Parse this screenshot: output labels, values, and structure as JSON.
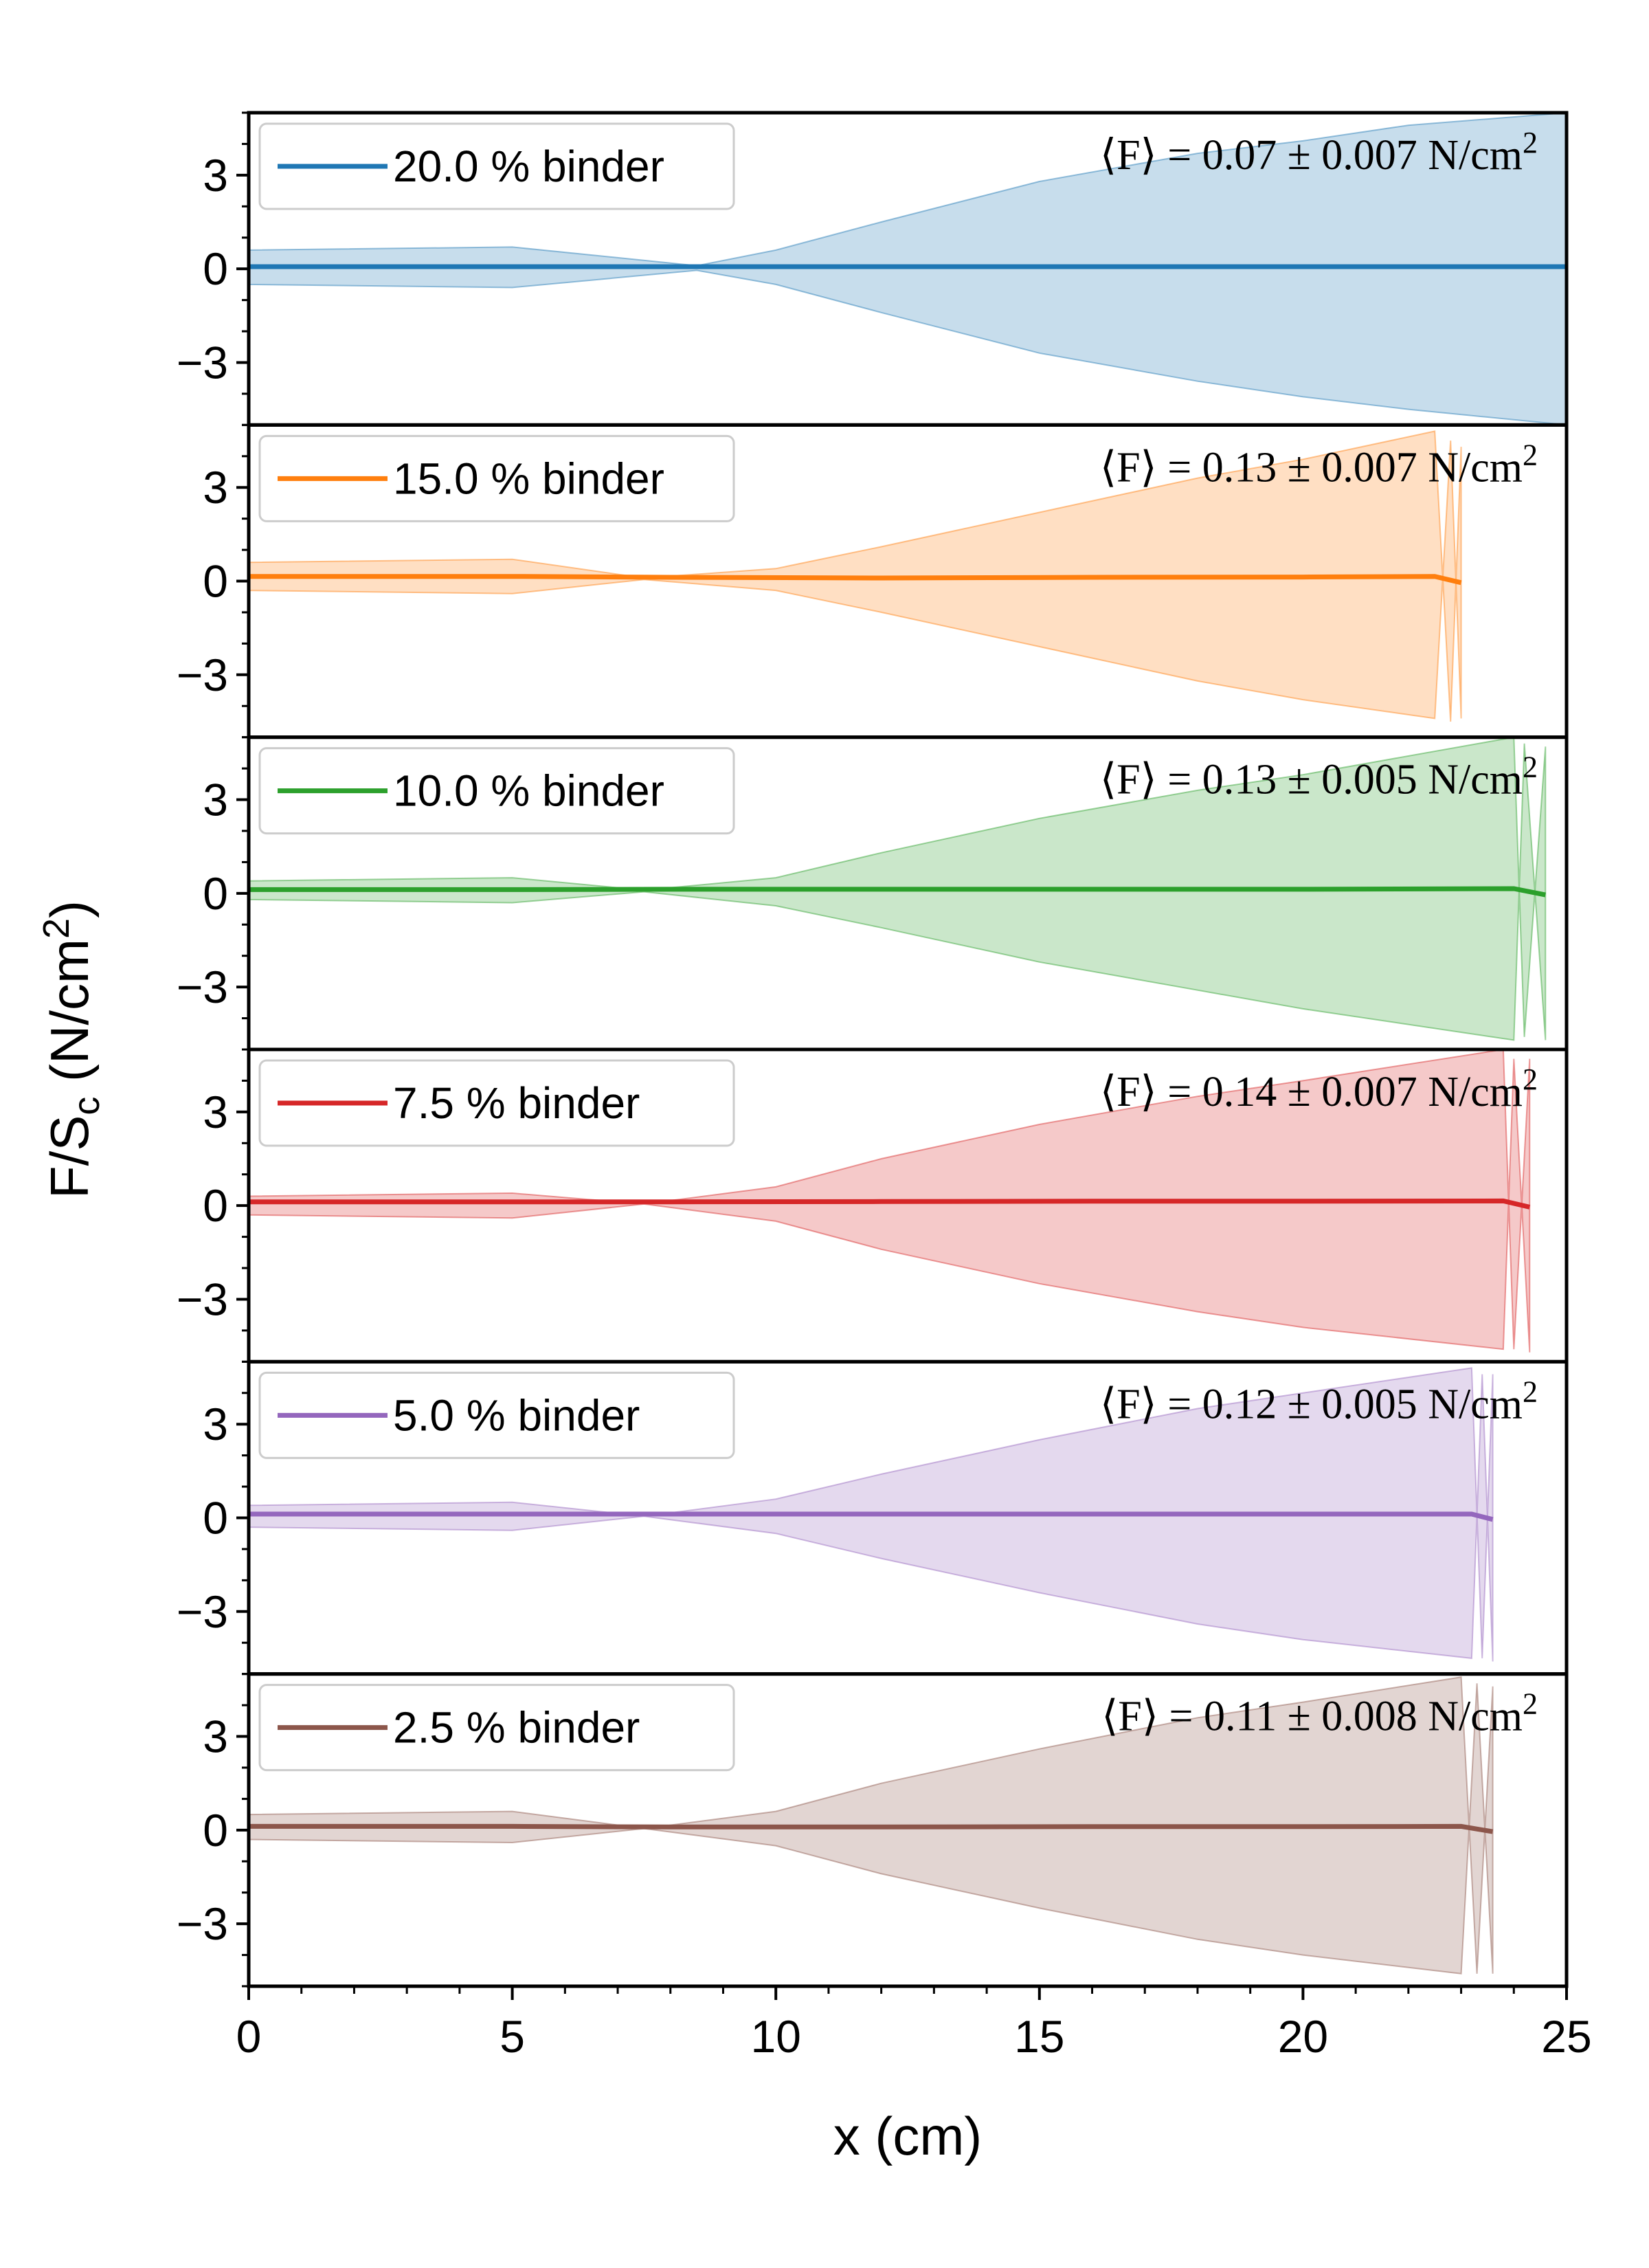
{
  "chart_data": {
    "type": "line",
    "layout": "6 vertically stacked panels with shared x axis",
    "xlabel": "x (cm)",
    "ylabel_main": "F/S",
    "ylabel_sub": "c",
    "ylabel_unit_open": " (N/cm",
    "ylabel_unit_sup": "2",
    "ylabel_unit_close": ")",
    "xlim": [
      0,
      25
    ],
    "ylim": [
      -5,
      5
    ],
    "x_ticks": [
      "0",
      "5",
      "10",
      "15",
      "20",
      "25"
    ],
    "y_ticks": [
      "3",
      "0",
      "−3"
    ],
    "grid": false,
    "legend_placement": "top-left",
    "annotation_placement": "top-right",
    "series": [
      {
        "name": "20.0 % binder",
        "color": "#1f77b4",
        "annotation": {
          "prefix": "⟨F⟩ = 0.07 ± 0.007 N/cm",
          "sup": "2"
        },
        "mean_x": [
          0,
          5,
          8,
          12,
          16,
          20,
          25
        ],
        "mean_y": [
          0.07,
          0.07,
          0.07,
          0.07,
          0.07,
          0.07,
          0.07
        ],
        "band_x": [
          0,
          5,
          8.5,
          10,
          12,
          15,
          18,
          20,
          22,
          25
        ],
        "band_upper": [
          0.6,
          0.7,
          0.1,
          0.6,
          1.5,
          2.8,
          3.7,
          4.1,
          4.6,
          5.0
        ],
        "band_lower": [
          -0.5,
          -0.6,
          -0.05,
          -0.5,
          -1.4,
          -2.7,
          -3.6,
          -4.1,
          -4.5,
          -5.0
        ]
      },
      {
        "name": "15.0 % binder",
        "color": "#ff7f0e",
        "annotation": {
          "prefix": "⟨F⟩ = 0.13 ± 0.007 N/cm",
          "sup": "2"
        },
        "mean_x": [
          0,
          5,
          8,
          12,
          16,
          20,
          22.5,
          23.0
        ],
        "mean_y": [
          0.15,
          0.15,
          0.12,
          0.1,
          0.12,
          0.13,
          0.15,
          -0.05
        ],
        "band_x": [
          0,
          5,
          7.5,
          10,
          12,
          15,
          18,
          20,
          22.5,
          22.8,
          23.0
        ],
        "band_upper": [
          0.6,
          0.7,
          0.1,
          0.4,
          1.1,
          2.2,
          3.3,
          3.9,
          4.8,
          -4.5,
          4.3
        ],
        "band_lower": [
          -0.3,
          -0.4,
          0.05,
          -0.3,
          -1.0,
          -2.1,
          -3.2,
          -3.8,
          -4.4,
          4.5,
          -4.4
        ]
      },
      {
        "name": "10.0 % binder",
        "color": "#2ca02c",
        "annotation": {
          "prefix": "⟨F⟩ = 0.13 ± 0.005 N/cm",
          "sup": "2"
        },
        "mean_x": [
          0,
          5,
          8,
          12,
          16,
          20,
          24.0,
          24.6
        ],
        "mean_y": [
          0.12,
          0.12,
          0.13,
          0.13,
          0.13,
          0.13,
          0.15,
          -0.05
        ],
        "band_x": [
          0,
          5,
          7.5,
          10,
          12,
          15,
          18,
          20,
          24.0,
          24.2,
          24.6
        ],
        "band_upper": [
          0.4,
          0.5,
          0.1,
          0.5,
          1.3,
          2.4,
          3.3,
          3.8,
          5.0,
          -4.6,
          4.7
        ],
        "band_lower": [
          -0.2,
          -0.3,
          0.05,
          -0.4,
          -1.1,
          -2.2,
          -3.1,
          -3.7,
          -4.7,
          4.8,
          -4.7
        ]
      },
      {
        "name": "7.5 % binder",
        "color": "#d62728",
        "annotation": {
          "prefix": "⟨F⟩ = 0.14 ± 0.007 N/cm",
          "sup": "2"
        },
        "mean_x": [
          0,
          5,
          8,
          12,
          16,
          20,
          23.8,
          24.3
        ],
        "mean_y": [
          0.12,
          0.12,
          0.12,
          0.13,
          0.14,
          0.14,
          0.15,
          -0.05
        ],
        "band_x": [
          0,
          5,
          7.5,
          10,
          12,
          15,
          18,
          20,
          23.8,
          24.0,
          24.3
        ],
        "band_upper": [
          0.3,
          0.4,
          0.05,
          0.6,
          1.5,
          2.6,
          3.5,
          4.0,
          5.0,
          -4.6,
          4.7
        ],
        "band_lower": [
          -0.3,
          -0.4,
          0.05,
          -0.5,
          -1.4,
          -2.5,
          -3.4,
          -3.9,
          -4.6,
          4.7,
          -4.7
        ]
      },
      {
        "name": "5.0 % binder",
        "color": "#9467bd",
        "annotation": {
          "prefix": "⟨F⟩ = 0.12 ± 0.005 N/cm",
          "sup": "2"
        },
        "mean_x": [
          0,
          5,
          8,
          12,
          16,
          20,
          23.2,
          23.6
        ],
        "mean_y": [
          0.12,
          0.12,
          0.12,
          0.12,
          0.12,
          0.12,
          0.12,
          -0.05
        ],
        "band_x": [
          0,
          5,
          7.5,
          10,
          12,
          15,
          18,
          20,
          23.2,
          23.4,
          23.6
        ],
        "band_upper": [
          0.4,
          0.5,
          0.05,
          0.6,
          1.4,
          2.5,
          3.5,
          4.0,
          4.8,
          -4.5,
          4.6
        ],
        "band_lower": [
          -0.3,
          -0.4,
          0.05,
          -0.5,
          -1.3,
          -2.4,
          -3.4,
          -3.9,
          -4.5,
          4.6,
          -4.6
        ]
      },
      {
        "name": "2.5 % binder",
        "color": "#8c564b",
        "annotation": {
          "prefix": "⟨F⟩ = 0.11 ± 0.008 N/cm",
          "sup": "2"
        },
        "mean_x": [
          0,
          5,
          8,
          12,
          16,
          20,
          23.0,
          23.6
        ],
        "mean_y": [
          0.12,
          0.12,
          0.1,
          0.1,
          0.11,
          0.11,
          0.12,
          -0.05
        ],
        "band_x": [
          0,
          5,
          7.5,
          10,
          12,
          15,
          18,
          20,
          23.0,
          23.3,
          23.6
        ],
        "band_upper": [
          0.5,
          0.6,
          0.05,
          0.6,
          1.5,
          2.6,
          3.6,
          4.1,
          4.9,
          -4.6,
          4.6
        ],
        "band_lower": [
          -0.3,
          -0.4,
          0.05,
          -0.5,
          -1.4,
          -2.5,
          -3.5,
          -4.0,
          -4.6,
          4.7,
          -4.6
        ]
      }
    ]
  }
}
